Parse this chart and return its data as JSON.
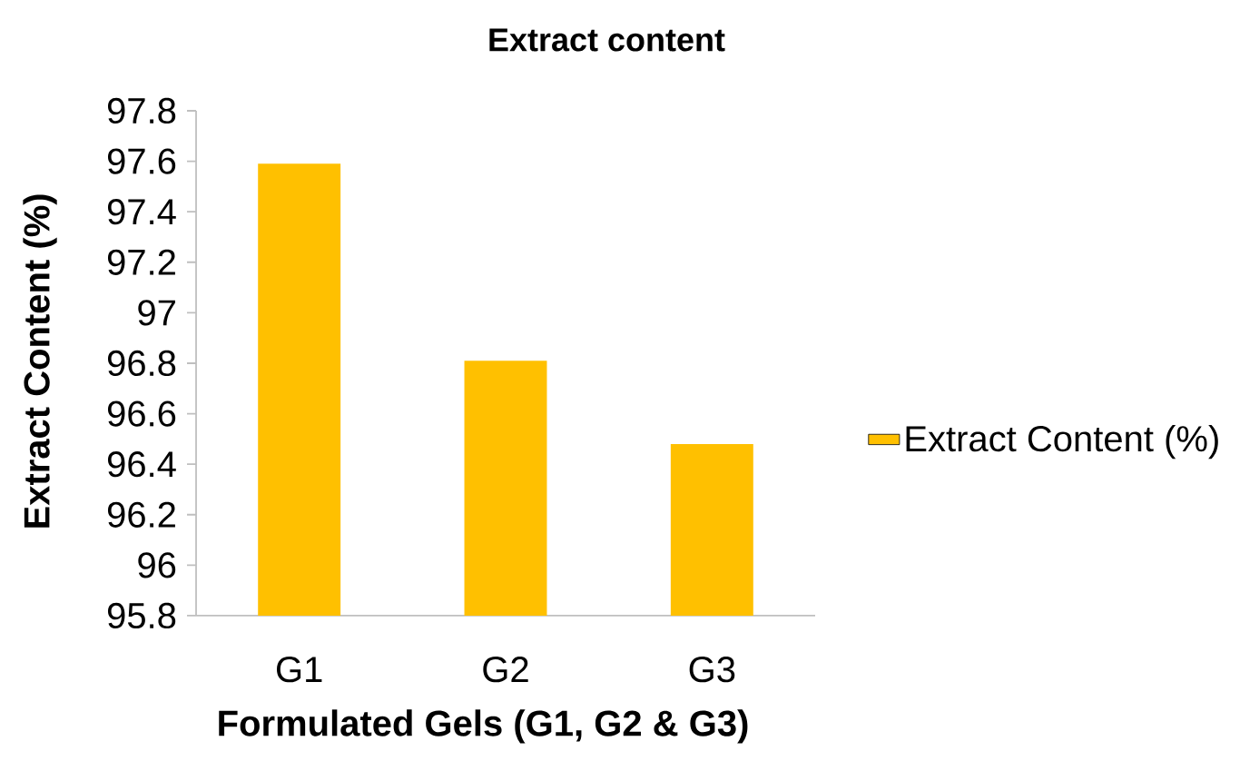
{
  "chart_data": {
    "type": "bar",
    "title": "Extract content",
    "xlabel": "Formulated Gels (G1, G2 & G3)",
    "ylabel": "Extract Content (%)",
    "categories": [
      "G1",
      "G2",
      "G3"
    ],
    "series": [
      {
        "name": "Extract Content (%)",
        "color": "#ffc000",
        "values": [
          97.59,
          96.81,
          96.48
        ]
      }
    ],
    "ylim": [
      95.8,
      97.8
    ],
    "yticks": [
      95.8,
      96,
      96.2,
      96.4,
      96.6,
      96.8,
      97,
      97.2,
      97.4,
      97.6,
      97.8
    ],
    "legend": "right"
  }
}
